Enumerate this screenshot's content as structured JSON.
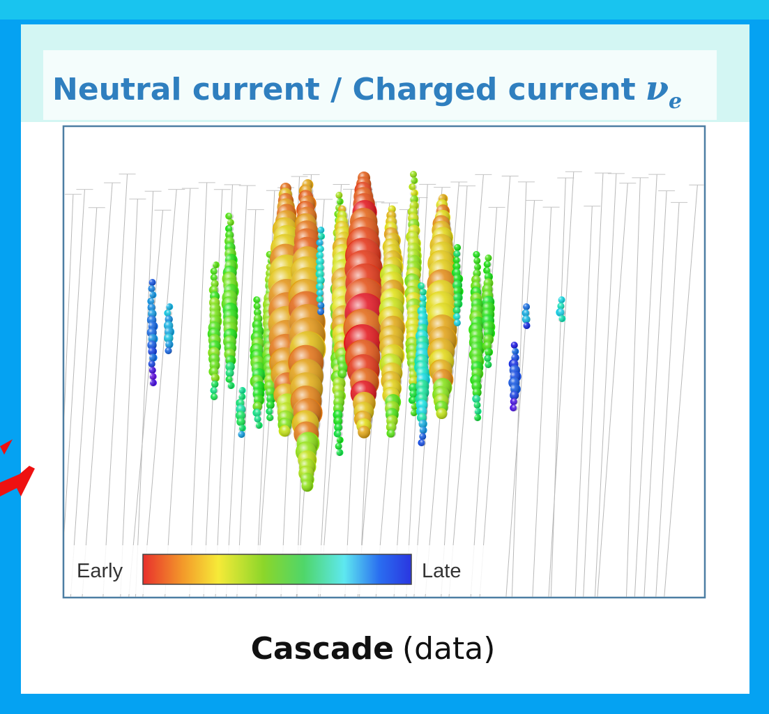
{
  "header": {
    "title": "Neutral current / Charged current",
    "symbol": "ν",
    "subscript": "e"
  },
  "legend": {
    "start": "Early",
    "end": "Late"
  },
  "caption": {
    "bold": "Cascade",
    "rest": "(data)"
  }
}
